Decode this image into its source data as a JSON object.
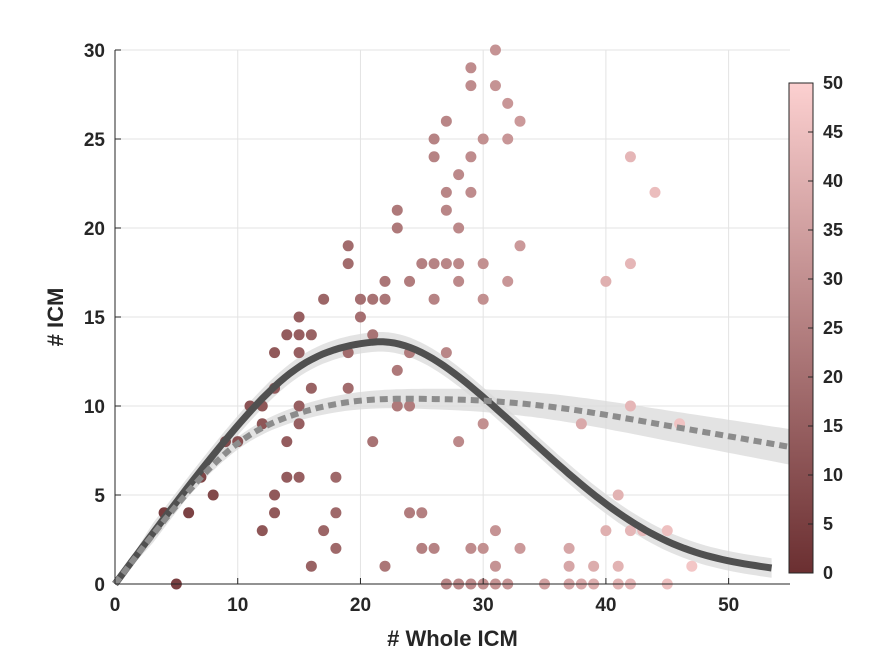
{
  "chart_data": {
    "type": "scatter",
    "xlabel": "# Whole ICM",
    "ylabel": "# ICM",
    "xlim": [
      0,
      55
    ],
    "ylim": [
      0,
      30
    ],
    "xticks": [
      "0",
      "10",
      "20",
      "30",
      "40",
      "50"
    ],
    "yticks": [
      "0",
      "5",
      "10",
      "15",
      "20",
      "25",
      "30"
    ],
    "grid": true,
    "colorbar": {
      "range": [
        0,
        50
      ],
      "ticks": [
        "0",
        "5",
        "10",
        "15",
        "20",
        "25",
        "30",
        "35",
        "40",
        "45",
        "50"
      ],
      "color_low": "#6b2f31",
      "color_high": "#fcd0d0"
    },
    "points": [
      {
        "x": 4,
        "y": 4
      },
      {
        "x": 5,
        "y": 0
      },
      {
        "x": 6,
        "y": 4
      },
      {
        "x": 7,
        "y": 6
      },
      {
        "x": 8,
        "y": 5
      },
      {
        "x": 9,
        "y": 8
      },
      {
        "x": 10,
        "y": 8
      },
      {
        "x": 11,
        "y": 10
      },
      {
        "x": 12,
        "y": 10
      },
      {
        "x": 12,
        "y": 9
      },
      {
        "x": 12,
        "y": 3
      },
      {
        "x": 13,
        "y": 13
      },
      {
        "x": 13,
        "y": 11
      },
      {
        "x": 13,
        "y": 5
      },
      {
        "x": 13,
        "y": 4
      },
      {
        "x": 14,
        "y": 14
      },
      {
        "x": 14,
        "y": 8
      },
      {
        "x": 14,
        "y": 6
      },
      {
        "x": 15,
        "y": 15
      },
      {
        "x": 15,
        "y": 14
      },
      {
        "x": 15,
        "y": 13
      },
      {
        "x": 15,
        "y": 10
      },
      {
        "x": 15,
        "y": 9
      },
      {
        "x": 15,
        "y": 6
      },
      {
        "x": 16,
        "y": 14
      },
      {
        "x": 16,
        "y": 11
      },
      {
        "x": 16,
        "y": 1
      },
      {
        "x": 17,
        "y": 16
      },
      {
        "x": 17,
        "y": 3
      },
      {
        "x": 18,
        "y": 6
      },
      {
        "x": 18,
        "y": 4
      },
      {
        "x": 18,
        "y": 2
      },
      {
        "x": 19,
        "y": 19
      },
      {
        "x": 19,
        "y": 18
      },
      {
        "x": 19,
        "y": 13
      },
      {
        "x": 19,
        "y": 11
      },
      {
        "x": 20,
        "y": 16
      },
      {
        "x": 20,
        "y": 15
      },
      {
        "x": 21,
        "y": 16
      },
      {
        "x": 21,
        "y": 14
      },
      {
        "x": 21,
        "y": 8
      },
      {
        "x": 22,
        "y": 17
      },
      {
        "x": 22,
        "y": 16
      },
      {
        "x": 22,
        "y": 1
      },
      {
        "x": 23,
        "y": 21
      },
      {
        "x": 23,
        "y": 20
      },
      {
        "x": 23,
        "y": 12
      },
      {
        "x": 23,
        "y": 10
      },
      {
        "x": 24,
        "y": 17
      },
      {
        "x": 24,
        "y": 13
      },
      {
        "x": 24,
        "y": 10
      },
      {
        "x": 24,
        "y": 4
      },
      {
        "x": 25,
        "y": 18
      },
      {
        "x": 25,
        "y": 4
      },
      {
        "x": 25,
        "y": 2
      },
      {
        "x": 26,
        "y": 25
      },
      {
        "x": 26,
        "y": 24
      },
      {
        "x": 26,
        "y": 18
      },
      {
        "x": 26,
        "y": 16
      },
      {
        "x": 26,
        "y": 2
      },
      {
        "x": 27,
        "y": 26
      },
      {
        "x": 27,
        "y": 22
      },
      {
        "x": 27,
        "y": 21
      },
      {
        "x": 27,
        "y": 18
      },
      {
        "x": 27,
        "y": 13
      },
      {
        "x": 27,
        "y": 0
      },
      {
        "x": 28,
        "y": 23
      },
      {
        "x": 28,
        "y": 20
      },
      {
        "x": 28,
        "y": 18
      },
      {
        "x": 28,
        "y": 17
      },
      {
        "x": 28,
        "y": 8
      },
      {
        "x": 28,
        "y": 0
      },
      {
        "x": 29,
        "y": 29
      },
      {
        "x": 29,
        "y": 28
      },
      {
        "x": 29,
        "y": 24
      },
      {
        "x": 29,
        "y": 22
      },
      {
        "x": 29,
        "y": 2
      },
      {
        "x": 29,
        "y": 0
      },
      {
        "x": 30,
        "y": 25
      },
      {
        "x": 30,
        "y": 18
      },
      {
        "x": 30,
        "y": 16
      },
      {
        "x": 30,
        "y": 9
      },
      {
        "x": 30,
        "y": 2
      },
      {
        "x": 30,
        "y": 0
      },
      {
        "x": 31,
        "y": 30
      },
      {
        "x": 31,
        "y": 28
      },
      {
        "x": 31,
        "y": 3
      },
      {
        "x": 31,
        "y": 1
      },
      {
        "x": 31,
        "y": 0
      },
      {
        "x": 32,
        "y": 27
      },
      {
        "x": 32,
        "y": 25
      },
      {
        "x": 32,
        "y": 17
      },
      {
        "x": 32,
        "y": 0
      },
      {
        "x": 33,
        "y": 26
      },
      {
        "x": 33,
        "y": 19
      },
      {
        "x": 33,
        "y": 2
      },
      {
        "x": 35,
        "y": 0
      },
      {
        "x": 37,
        "y": 2
      },
      {
        "x": 37,
        "y": 1
      },
      {
        "x": 37,
        "y": 0
      },
      {
        "x": 38,
        "y": 9
      },
      {
        "x": 38,
        "y": 0
      },
      {
        "x": 39,
        "y": 1
      },
      {
        "x": 39,
        "y": 0
      },
      {
        "x": 40,
        "y": 17
      },
      {
        "x": 40,
        "y": 3
      },
      {
        "x": 41,
        "y": 5
      },
      {
        "x": 41,
        "y": 1
      },
      {
        "x": 41,
        "y": 0
      },
      {
        "x": 42,
        "y": 24
      },
      {
        "x": 42,
        "y": 18
      },
      {
        "x": 42,
        "y": 10
      },
      {
        "x": 42,
        "y": 3
      },
      {
        "x": 42,
        "y": 0
      },
      {
        "x": 43,
        "y": 3
      },
      {
        "x": 44,
        "y": 22
      },
      {
        "x": 45,
        "y": 3
      },
      {
        "x": 45,
        "y": 0
      },
      {
        "x": 46,
        "y": 9
      },
      {
        "x": 47,
        "y": 1
      }
    ],
    "fits": [
      {
        "style": "solid",
        "color": "#505050",
        "band_halfwidth": 0.55,
        "x": [
          0,
          5,
          10,
          15,
          20,
          22,
          25,
          30,
          35,
          40,
          45,
          50,
          53.5
        ],
        "y": [
          0,
          4.6,
          8.9,
          12.2,
          13.5,
          13.6,
          13.0,
          10.5,
          7.4,
          4.5,
          2.4,
          1.3,
          0.9
        ]
      },
      {
        "style": "dotted",
        "color": "#8c8c8c",
        "band_halfwidth_start": 0.2,
        "band_halfwidth_end": 1.0,
        "x": [
          0,
          5,
          10,
          15,
          20,
          25,
          30,
          35,
          40,
          45,
          50,
          55
        ],
        "y": [
          0,
          4.4,
          7.9,
          9.6,
          10.3,
          10.4,
          10.3,
          10.0,
          9.5,
          8.9,
          8.3,
          7.7
        ]
      }
    ]
  }
}
